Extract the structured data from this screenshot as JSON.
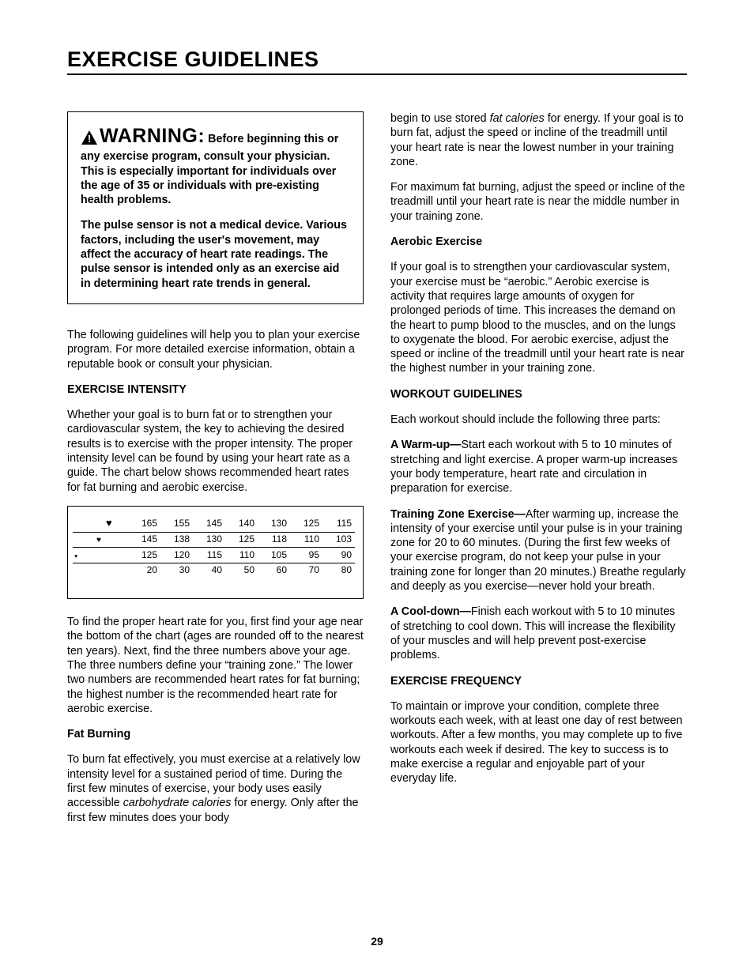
{
  "title": "EXERCISE GUIDELINES",
  "warning": {
    "word": "WARNING:",
    "p1": " Before beginning this or any exercise program, consult your physician. This is especially important for individuals over the age of 35 or individuals with pre-existing health problems.",
    "p2": "The pulse sensor is not a medical device. Various factors, including the user's movement, may affect the accuracy of heart rate readings. The pulse sensor is intended only as an exercise aid in determining heart rate trends in general."
  },
  "left": {
    "intro": "The following guidelines will help you to plan your exercise program. For more detailed exercise information, obtain a reputable book or consult your physician.",
    "h_intensity": "EXERCISE INTENSITY",
    "p_intensity": "Whether your goal is to burn fat or to strengthen your cardiovascular system, the key to achieving the desired results is to exercise with the proper intensity. The proper intensity level can be found by using your heart rate as a guide. The chart below shows recommended heart rates for fat burning and aerobic exercise.",
    "p_chartexpl": "To find the proper heart rate for you, first find your age near the bottom of the chart (ages are rounded off to the nearest ten years). Next, find the three numbers above your age. The three numbers define your “training zone.” The lower two numbers are recommended heart rates for fat burning; the highest number is the recommended heart rate for aerobic exercise.",
    "h_fat": "Fat Burning",
    "p_fat_a": "To burn fat effectively, you must exercise at a relatively low intensity level for a sustained period of time. During the first few minutes of exercise, your body uses easily accessible ",
    "p_fat_carbo": "carbohydrate calories",
    "p_fat_b": " for energy. Only after the first few minutes does your body"
  },
  "right": {
    "p_fat_c1": "begin to use stored ",
    "p_fat_cal": "fat calories",
    "p_fat_c2": " for energy. If your goal is to burn fat, adjust the speed or incline of the treadmill until your heart rate is near the lowest number in your training zone.",
    "p_fat_max": "For maximum fat burning, adjust the speed or incline of the treadmill until your heart rate is near the middle number in your training zone.",
    "h_aerobic": "Aerobic Exercise",
    "p_aerobic": "If your goal is to strengthen your cardiovascular system, your exercise must be “aerobic.” Aerobic exercise is activity that requires large amounts of oxygen for prolonged periods of time. This increases the demand on the heart to pump blood to the muscles, and on the lungs to oxygenate the blood. For aerobic exercise, adjust the speed or incline of the treadmill until your heart rate is near the highest number in your training zone.",
    "h_workout": "WORKOUT GUIDELINES",
    "p_workout_intro": "Each workout should include the following three parts:",
    "warmup_label": "A Warm-up—",
    "warmup_body": "Start each workout with 5 to 10 minutes of stretching and light exercise. A proper warm-up increases your body temperature, heart rate and circulation in preparation for exercise.",
    "train_label": "Training Zone Exercise—",
    "train_body": "After warming up, increase the intensity of your exercise until your pulse is in your training zone for 20 to 60 minutes. (During the first few weeks of your exercise program, do not keep your pulse in your training zone for longer than 20 minutes.) Breathe regularly and deeply as you exercise—never hold your breath.",
    "cool_label": "A Cool-down—",
    "cool_body": "Finish each workout with 5 to 10 minutes of stretching to cool down. This will increase the flexibility of your muscles and will help prevent post-exercise problems.",
    "h_freq": "EXERCISE FREQUENCY",
    "p_freq": "To maintain or improve your condition, complete three workouts each week, with at least one day of rest between workouts. After a few months, you may complete up to five workouts each week if desired. The key to success is to make exercise a regular and enjoyable part of your everyday life."
  },
  "chart": {
    "rows": [
      {
        "icon_size": "lg",
        "icon_indent": 40,
        "underlined": true,
        "values": [
          "165",
          "155",
          "145",
          "140",
          "130",
          "125",
          "115"
        ]
      },
      {
        "icon_size": "md",
        "icon_indent": 28,
        "underlined": true,
        "values": [
          "145",
          "138",
          "130",
          "125",
          "118",
          "110",
          "103"
        ]
      },
      {
        "icon_size": "sm",
        "icon_indent": 0,
        "underlined": true,
        "values": [
          "125",
          "120",
          "115",
          "110",
          "105",
          "95",
          "90"
        ]
      },
      {
        "icon_size": "",
        "icon_indent": 0,
        "underlined": false,
        "values": [
          "20",
          "30",
          "40",
          "50",
          "60",
          "70",
          "80"
        ]
      }
    ]
  },
  "page_number": "29"
}
